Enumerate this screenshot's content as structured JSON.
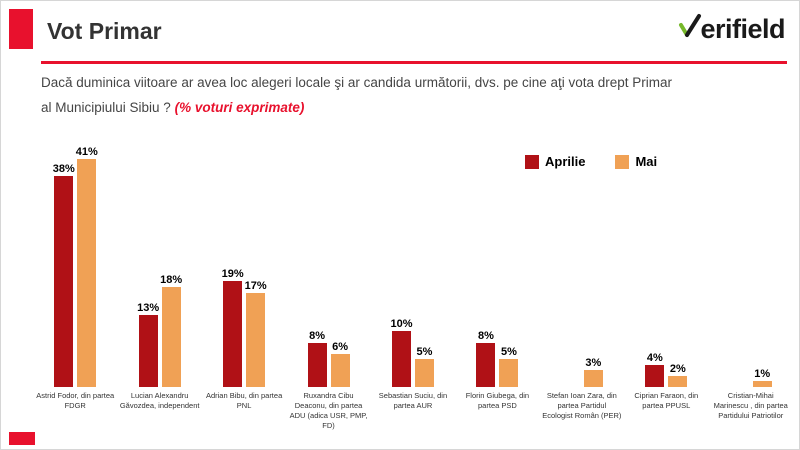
{
  "header": {
    "title": "Vot Primar",
    "logo_text": "erifield"
  },
  "question": {
    "line1": "Dacă duminica viitoare ar avea loc alegeri locale şi ar candida următorii, dvs. pe cine aţi vota drept Primar",
    "line2": "al Municipiului Sibiu ?",
    "highlight": "(% voturi exprimate)"
  },
  "colors": {
    "accent_red": "#E8112D",
    "aprilie_red": "#B01116",
    "mai_orange": "#F0A155"
  },
  "chart_data": {
    "type": "bar",
    "title": "Vot Primar",
    "categories": [
      "Astrid Fodor, din partea FDGR",
      "Lucian Alexandru Găvozdea, independent",
      "Adrian Bibu, din partea PNL",
      "Ruxandra Cibu Deaconu, din partea ADU (adica USR, PMP, FD)",
      "Sebastian Suciu, din partea AUR",
      "Florin Giubega, din partea PSD",
      "Stefan Ioan Zara, din partea Partidul Ecologist Român (PER)",
      "Ciprian Faraon, din partea PPUSL",
      "Cristian-Mihai Marinescu , din partea Partidului Patriotilor"
    ],
    "series": [
      {
        "name": "Aprilie",
        "color": "#B01116",
        "values": [
          38,
          13,
          19,
          8,
          10,
          8,
          null,
          4,
          null
        ]
      },
      {
        "name": "Mai",
        "color": "#F0A155",
        "values": [
          41,
          18,
          17,
          6,
          5,
          5,
          3,
          2,
          1
        ]
      }
    ],
    "value_suffix": "%",
    "ylim": [
      0,
      45
    ],
    "grid": false,
    "legend_position": "top-right",
    "xlabel": "",
    "ylabel": ""
  }
}
